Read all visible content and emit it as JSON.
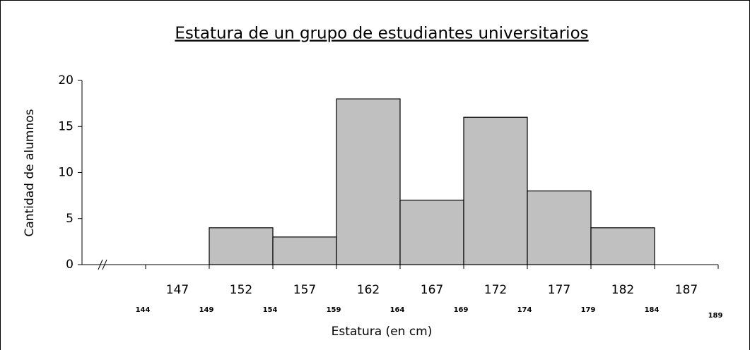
{
  "chart_data": {
    "type": "histogram",
    "title": "Estatura de un grupo de estudiantes universitarios",
    "xlabel": "Estatura (en cm)",
    "ylabel": "Cantidad de alumnos",
    "bins": [
      144,
      149,
      154,
      159,
      164,
      169,
      174,
      179,
      184,
      189
    ],
    "counts": [
      0,
      4,
      3,
      18,
      7,
      16,
      8,
      4,
      0
    ],
    "class_marks": [
      147,
      152,
      157,
      162,
      167,
      172,
      177,
      182,
      187
    ],
    "color": "#c0c0c0",
    "xlim": [
      139,
      189
    ],
    "xticks": [
      144,
      149,
      154,
      159,
      164,
      169,
      174,
      179,
      184,
      189
    ],
    "ylim": [
      0,
      20
    ],
    "yticks": [
      0,
      5,
      10,
      15,
      20
    ],
    "grid": false
  }
}
